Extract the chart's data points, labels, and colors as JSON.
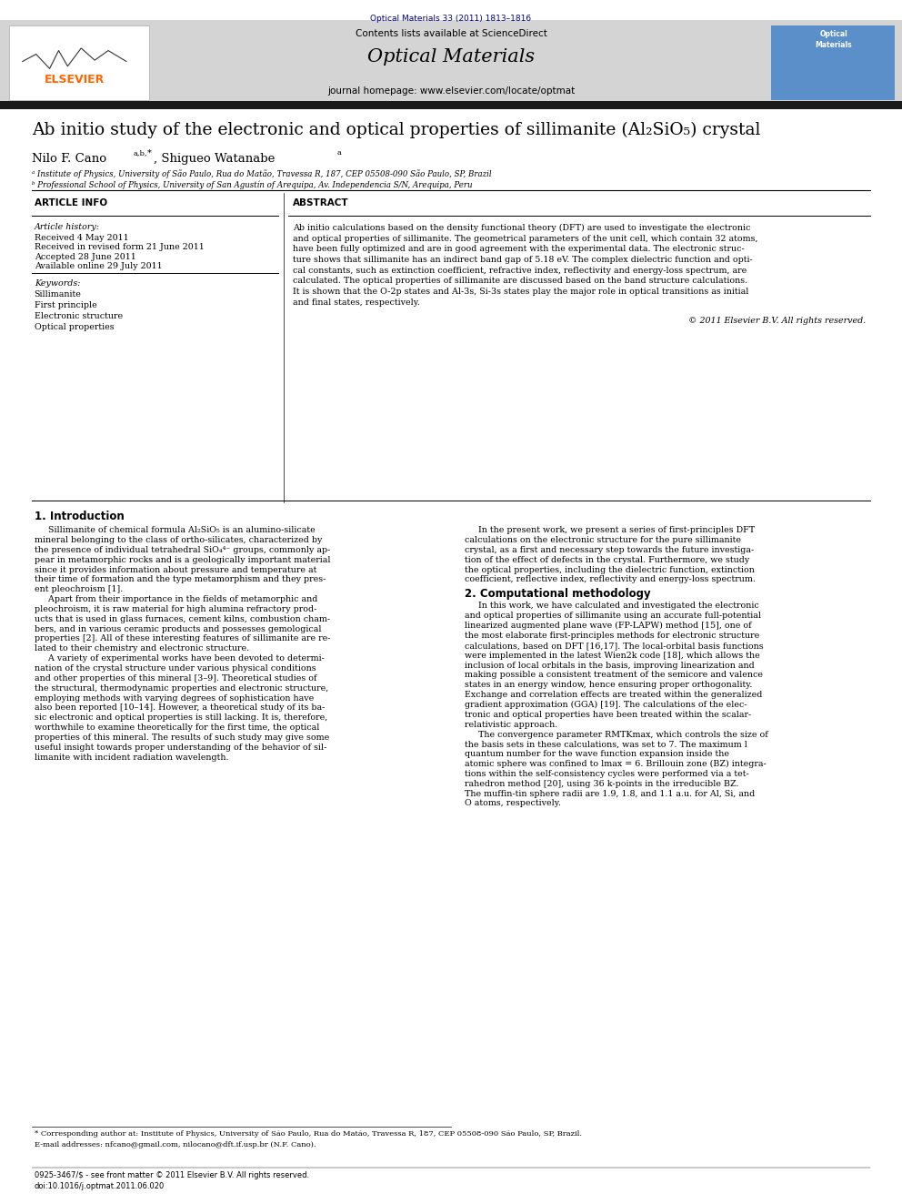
{
  "fig_width": 9.92,
  "fig_height": 13.23,
  "bg_color": "#ffffff",
  "journal_citation": "Optical Materials 33 (2011) 1813–1816",
  "journal_citation_color": "#00008B",
  "header_bg": "#d4d4d4",
  "journal_name": "Optical Materials",
  "journal_url": "journal homepage: www.elsevier.com/locate/optmat",
  "contents_line": "Contents lists available at ScienceDirect",
  "elsevier_color": "#FF6600",
  "thick_bar_color": "#1a1a1a",
  "article_title": "Ab initio study of the electronic and optical properties of sillimanite (Al₂SiO₅) crystal",
  "affil_a": "ᵃ Institute of Physics, University of São Paulo, Rua do Matão, Travessa R, 187, CEP 05508-090 São Paulo, SP, Brazil",
  "affil_b": "ᵇ Professional School of Physics, University of San Agustín of Arequipa, Av. Independencia S/N, Arequipa, Peru",
  "article_info_header": "ARTICLE INFO",
  "abstract_header": "ABSTRACT",
  "article_history_label": "Article history:",
  "received": "Received 4 May 2011",
  "received_revised": "Received in revised form 21 June 2011",
  "accepted": "Accepted 28 June 2011",
  "available": "Available online 29 July 2011",
  "keywords_label": "Keywords:",
  "keywords": [
    "Sillimanite",
    "First principle",
    "Electronic structure",
    "Optical properties"
  ],
  "copyright": "© 2011 Elsevier B.V. All rights reserved.",
  "section1_title": "1. Introduction",
  "section2_title": "2. Computational methodology",
  "footnote1": "* Corresponding author at: Institute of Physics, University of São Paulo, Rua do Matão, Travessa R, 187, CEP 05508-090 São Paulo, SP, Brazil.",
  "footnote2": "E-mail addresses: nfcano@gmail.com, nilocano@dft.if.usp.br (N.F. Cano).",
  "footer_line1": "0925-3467/$ - see front matter © 2011 Elsevier B.V. All rights reserved.",
  "footer_line2": "doi:10.1016/j.optmat.2011.06.020"
}
